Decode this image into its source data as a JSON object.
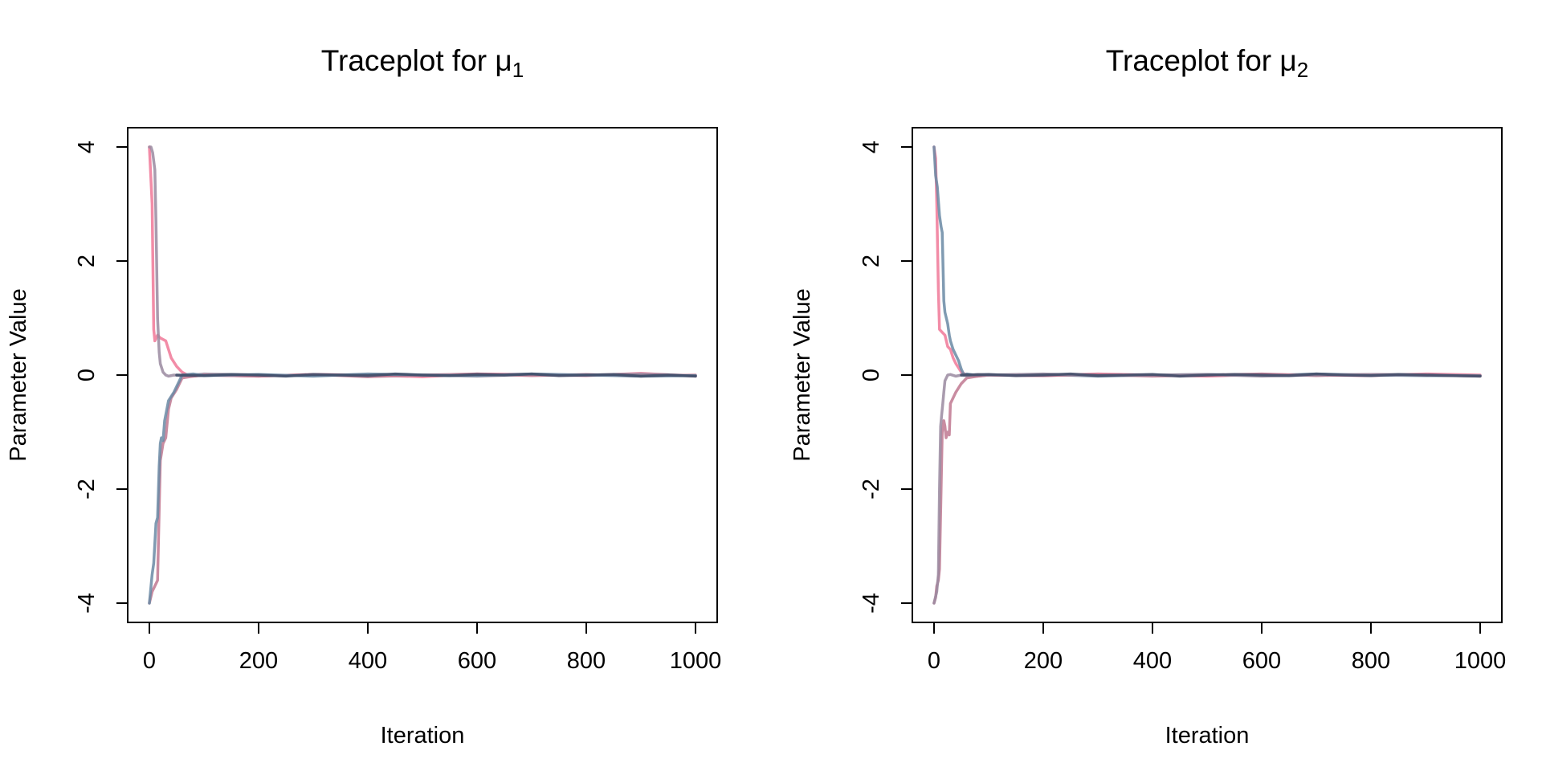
{
  "figure": {
    "panels": [
      {
        "title_main": "Traceplot for ",
        "title_symbol": "μ",
        "title_subscript": "1"
      },
      {
        "title_main": "Traceplot for ",
        "title_symbol": "μ",
        "title_subscript": "2"
      }
    ]
  },
  "chart_data": [
    {
      "type": "line",
      "title": "Traceplot for μ1",
      "xlabel": "Iteration",
      "ylabel": "Parameter Value",
      "xlim": [
        0,
        1000
      ],
      "ylim": [
        -4,
        4
      ],
      "xticks": [
        0,
        200,
        400,
        600,
        800,
        1000
      ],
      "yticks": [
        -4,
        -2,
        0,
        2,
        4
      ],
      "grid": false,
      "series": [
        {
          "color": "#f07898",
          "x": [
            0,
            5,
            8,
            10,
            15,
            20,
            30,
            40,
            50,
            60,
            70,
            80,
            100,
            200,
            300,
            400,
            500,
            600,
            700,
            800,
            900,
            1000
          ],
          "y": [
            4.0,
            3.0,
            0.8,
            0.6,
            0.7,
            0.65,
            0.6,
            0.3,
            0.15,
            0.05,
            0.0,
            -0.02,
            0.0,
            -0.02,
            0.01,
            0.0,
            -0.03,
            0.02,
            0.01,
            -0.01,
            0.03,
            -0.02
          ]
        },
        {
          "color": "#9a8aa0",
          "x": [
            0,
            3,
            6,
            10,
            12,
            15,
            18,
            20,
            25,
            30,
            35,
            45,
            60,
            80,
            100,
            200,
            300,
            400,
            500,
            600,
            700,
            800,
            900,
            1000
          ],
          "y": [
            4.0,
            4.0,
            3.9,
            3.6,
            2.7,
            1.0,
            0.4,
            0.2,
            0.05,
            0.0,
            -0.02,
            0.0,
            -0.01,
            0.0,
            0.02,
            0.0,
            -0.01,
            0.01,
            0.0,
            -0.02,
            0.01,
            0.0,
            0.02,
            -0.01
          ]
        },
        {
          "color": "#c07890",
          "x": [
            0,
            5,
            10,
            15,
            20,
            25,
            30,
            35,
            40,
            50,
            60,
            80,
            100,
            200,
            300,
            400,
            500,
            600,
            700,
            800,
            900,
            1000
          ],
          "y": [
            -4.0,
            -3.8,
            -3.7,
            -3.6,
            -1.5,
            -1.2,
            -1.1,
            -0.6,
            -0.4,
            -0.25,
            -0.05,
            -0.02,
            0.0,
            -0.02,
            0.01,
            -0.03,
            0.0,
            0.02,
            -0.01,
            0.01,
            -0.02,
            0.0
          ]
        },
        {
          "color": "#6a8aa4",
          "x": [
            0,
            5,
            8,
            12,
            15,
            18,
            20,
            22,
            25,
            28,
            35,
            45,
            55,
            60,
            80,
            100,
            200,
            300,
            400,
            500,
            600,
            700,
            800,
            900,
            1000
          ],
          "y": [
            -4.0,
            -3.5,
            -3.3,
            -2.6,
            -2.5,
            -1.6,
            -1.2,
            -1.1,
            -1.15,
            -0.8,
            -0.45,
            -0.3,
            -0.1,
            0.0,
            0.02,
            -0.01,
            0.01,
            -0.02,
            0.02,
            0.0,
            -0.01,
            0.02,
            0.0,
            -0.02,
            -0.01
          ]
        },
        {
          "color": "#3c4a66",
          "x": [
            50,
            100,
            150,
            200,
            250,
            300,
            350,
            400,
            450,
            500,
            550,
            600,
            650,
            700,
            750,
            800,
            850,
            900,
            950,
            1000
          ],
          "y": [
            0.0,
            -0.01,
            0.01,
            0.0,
            -0.02,
            0.01,
            0.0,
            -0.01,
            0.02,
            0.0,
            -0.01,
            0.01,
            0.0,
            0.02,
            -0.01,
            0.0,
            0.01,
            -0.02,
            0.0,
            -0.02
          ]
        }
      ]
    },
    {
      "type": "line",
      "title": "Traceplot for μ2",
      "xlabel": "Iteration",
      "ylabel": "Parameter Value",
      "xlim": [
        0,
        1000
      ],
      "ylim": [
        -4,
        4
      ],
      "xticks": [
        0,
        200,
        400,
        600,
        800,
        1000
      ],
      "yticks": [
        -4,
        -2,
        0,
        2,
        4
      ],
      "grid": false,
      "series": [
        {
          "color": "#f07898",
          "x": [
            0,
            3,
            5,
            8,
            10,
            15,
            20,
            25,
            30,
            35,
            40,
            50,
            60,
            80,
            100,
            200,
            300,
            400,
            500,
            600,
            700,
            800,
            900,
            1000
          ],
          "y": [
            4.0,
            3.8,
            3.0,
            1.5,
            0.8,
            0.75,
            0.7,
            0.5,
            0.45,
            0.3,
            0.2,
            0.05,
            0.0,
            -0.02,
            0.0,
            -0.01,
            0.02,
            0.0,
            -0.02,
            0.01,
            0.0,
            -0.01,
            0.02,
            0.0
          ]
        },
        {
          "color": "#6a8aa4",
          "x": [
            0,
            3,
            6,
            10,
            13,
            15,
            18,
            20,
            25,
            28,
            30,
            35,
            40,
            45,
            50,
            55,
            60,
            80,
            100,
            200,
            300,
            400,
            500,
            600,
            700,
            800,
            900,
            1000
          ],
          "y": [
            4.0,
            3.5,
            3.3,
            2.8,
            2.6,
            2.5,
            1.3,
            1.1,
            0.9,
            0.7,
            0.6,
            0.45,
            0.35,
            0.25,
            0.1,
            0.0,
            0.02,
            -0.01,
            0.0,
            0.01,
            -0.02,
            0.0,
            0.01,
            -0.01,
            0.02,
            0.0,
            -0.01,
            -0.01
          ]
        },
        {
          "color": "#c07890",
          "x": [
            0,
            3,
            5,
            8,
            10,
            13,
            15,
            18,
            20,
            22,
            25,
            28,
            30,
            35,
            40,
            50,
            60,
            80,
            100,
            200,
            300,
            400,
            500,
            600,
            700,
            800,
            900,
            1000
          ],
          "y": [
            -4.0,
            -3.9,
            -3.7,
            -3.6,
            -3.4,
            -2.0,
            -1.0,
            -0.8,
            -0.9,
            -1.1,
            -1.0,
            -1.05,
            -0.5,
            -0.4,
            -0.3,
            -0.15,
            -0.05,
            -0.02,
            0.0,
            -0.01,
            0.01,
            -0.02,
            0.0,
            0.02,
            -0.01,
            0.01,
            0.0,
            -0.02
          ]
        },
        {
          "color": "#9a8aa0",
          "x": [
            0,
            5,
            8,
            10,
            12,
            14,
            16,
            18,
            20,
            25,
            30,
            40,
            50,
            60,
            80,
            100,
            200,
            300,
            400,
            500,
            600,
            700,
            800,
            900,
            1000
          ],
          "y": [
            -4.0,
            -3.8,
            -3.5,
            -2.0,
            -0.9,
            -0.7,
            -0.5,
            -0.3,
            -0.1,
            0.0,
            0.01,
            -0.02,
            0.0,
            -0.01,
            0.01,
            0.0,
            0.02,
            -0.01,
            0.0,
            0.01,
            -0.02,
            0.0,
            0.01,
            0.0,
            -0.01
          ]
        },
        {
          "color": "#3c4a66",
          "x": [
            50,
            100,
            150,
            200,
            250,
            300,
            350,
            400,
            450,
            500,
            550,
            600,
            650,
            700,
            750,
            800,
            850,
            900,
            950,
            1000
          ],
          "y": [
            0.0,
            0.01,
            -0.01,
            0.0,
            0.02,
            -0.01,
            0.0,
            0.01,
            -0.02,
            0.0,
            0.01,
            0.0,
            -0.01,
            0.02,
            0.0,
            -0.01,
            0.01,
            0.0,
            -0.01,
            -0.02
          ]
        }
      ]
    }
  ]
}
